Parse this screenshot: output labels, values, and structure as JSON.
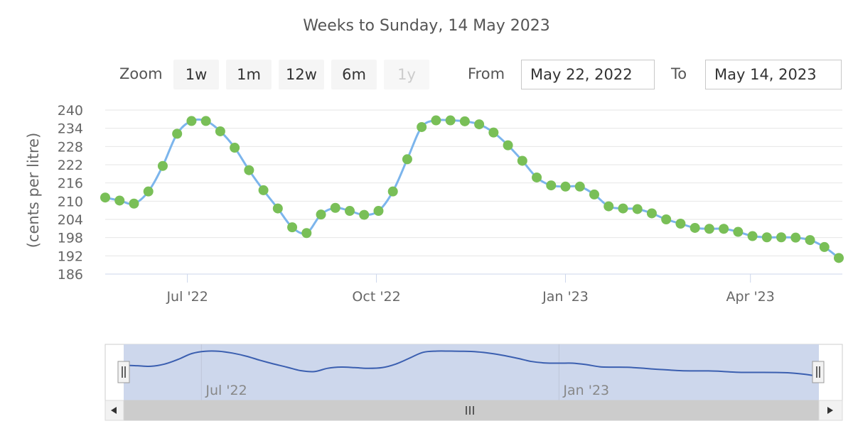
{
  "subtitle": "Weeks to Sunday, 14 May 2023",
  "range_selector": {
    "zoom_label": "Zoom",
    "buttons": [
      "1w",
      "1m",
      "12w",
      "6m",
      "1y"
    ],
    "disabled_button": "1y",
    "from_label": "From",
    "from_value": "May 22, 2022",
    "to_label": "To",
    "to_value": "May 14, 2023"
  },
  "colors": {
    "line": "#7cb5ec",
    "marker": "#79bf57",
    "navigator_fill": "#cdd7ec",
    "navigator_line": "#3b5fb0",
    "scrollbar": "#cccccc"
  },
  "chart_data": {
    "type": "line",
    "title": "",
    "ylabel": "(cents per litre)",
    "ylim": [
      186,
      240
    ],
    "yticks": [
      240,
      234,
      228,
      222,
      216,
      210,
      204,
      198,
      192,
      186
    ],
    "grid": true,
    "legend": false,
    "x_tick_labels": [
      {
        "date": "2022-07-01",
        "label": "Jul '22"
      },
      {
        "date": "2022-10-01",
        "label": "Oct '22"
      },
      {
        "date": "2023-01-01",
        "label": "Jan '23"
      },
      {
        "date": "2023-04-01",
        "label": "Apr '23"
      }
    ],
    "x": [
      "2022-05-22",
      "2022-05-29",
      "2022-06-05",
      "2022-06-12",
      "2022-06-19",
      "2022-06-26",
      "2022-07-03",
      "2022-07-10",
      "2022-07-17",
      "2022-07-24",
      "2022-07-31",
      "2022-08-07",
      "2022-08-14",
      "2022-08-21",
      "2022-08-28",
      "2022-09-04",
      "2022-09-11",
      "2022-09-18",
      "2022-09-25",
      "2022-10-02",
      "2022-10-09",
      "2022-10-16",
      "2022-10-23",
      "2022-10-30",
      "2022-11-06",
      "2022-11-13",
      "2022-11-20",
      "2022-11-27",
      "2022-12-04",
      "2022-12-11",
      "2022-12-18",
      "2022-12-25",
      "2023-01-01",
      "2023-01-08",
      "2023-01-15",
      "2023-01-22",
      "2023-01-29",
      "2023-02-05",
      "2023-02-12",
      "2023-02-19",
      "2023-02-26",
      "2023-03-05",
      "2023-03-12",
      "2023-03-19",
      "2023-03-26",
      "2023-04-02",
      "2023-04-09",
      "2023-04-16",
      "2023-04-23",
      "2023-04-30",
      "2023-05-07",
      "2023-05-14"
    ],
    "series": [
      {
        "values": [
          211.2,
          210.2,
          209.2,
          213.2,
          221.6,
          232.2,
          236.4,
          236.4,
          233.0,
          227.6,
          220.2,
          213.6,
          207.6,
          201.4,
          199.5,
          205.6,
          207.8,
          206.8,
          205.5,
          206.8,
          213.2,
          223.8,
          234.4,
          236.6,
          236.6,
          236.3,
          235.3,
          232.6,
          228.4,
          223.3,
          217.8,
          215.2,
          214.8,
          214.8,
          212.2,
          208.3,
          207.6,
          207.4,
          206.0,
          204.0,
          202.6,
          201.2,
          200.9,
          200.9,
          199.9,
          198.5,
          198.1,
          198.1,
          198.0,
          197.2,
          194.9,
          191.3
        ]
      }
    ],
    "navigator": {
      "x_tick_labels": [
        "Jul '22",
        "Jan '23"
      ]
    }
  }
}
